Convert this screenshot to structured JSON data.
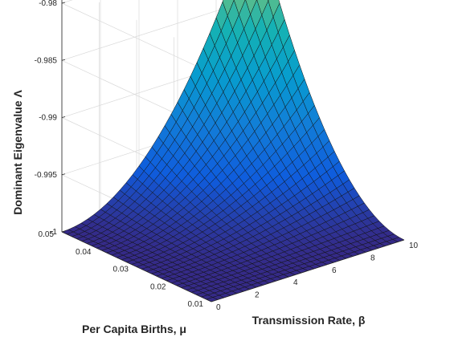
{
  "chart_data": {
    "type": "surface",
    "title": "",
    "xlabel": "Transmission Rate, β",
    "ylabel": "Per Capita Births, μ",
    "zlabel": "Dominant Eigenvalue Λ",
    "xlim": [
      0,
      10
    ],
    "ylim": [
      0.01,
      0.05
    ],
    "zlim": [
      -1,
      -0.98
    ],
    "x_ticks": [
      "0",
      "2",
      "4",
      "6",
      "8",
      "10"
    ],
    "y_ticks": [
      "0.01",
      "0.02",
      "0.03",
      "0.04",
      "0.05"
    ],
    "z_ticks": [
      "-1",
      "-0.995",
      "-0.99",
      "-0.985",
      "-0.98"
    ],
    "grid": true,
    "colormap": "parula",
    "corner_values": [
      {
        "x": 0,
        "y": 0.01,
        "z": -1.0
      },
      {
        "x": 10,
        "y": 0.01,
        "z": -1.0
      },
      {
        "x": 0,
        "y": 0.05,
        "z": -1.0
      },
      {
        "x": 10,
        "y": 0.05,
        "z": -0.9775
      }
    ],
    "model": "z = -1 + 0.0225 * (x/10)^2 * ((y-0.01)/0.04)^2"
  }
}
